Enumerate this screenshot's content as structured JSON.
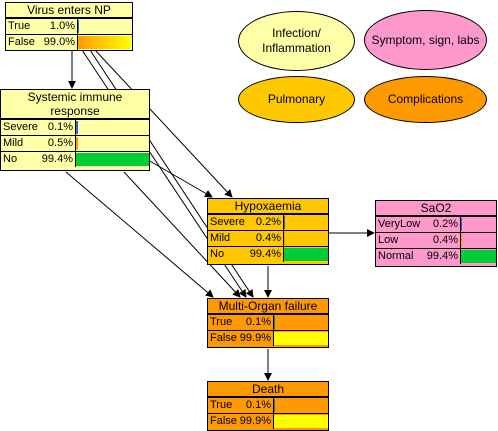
{
  "legend": {
    "infection": "Infection/\nInflammation",
    "symptom": "Symptom, sign, labs",
    "pulmonary": "Pulmonary",
    "complications": "Complications"
  },
  "colors": {
    "infection": "#ffffa8",
    "symptom": "#ff99cc",
    "pulmonary": "#ffc800",
    "complications": "#ff9900",
    "bar_blue": "#3366cc",
    "bar_green": "#00cc33",
    "bar_orange": "#ff9900",
    "bar_yellow": "#ffff00"
  },
  "nodes": {
    "virus": {
      "title": "Virus enters NP",
      "states": [
        {
          "label": "True",
          "pct": "1.0%",
          "p": 0.01
        },
        {
          "label": "False",
          "pct": "99.0%",
          "p": 0.99
        }
      ]
    },
    "immune": {
      "title": "Systemic immune response",
      "states": [
        {
          "label": "Severe",
          "pct": "0.1%",
          "p": 0.001
        },
        {
          "label": "Mild",
          "pct": "0.5%",
          "p": 0.005
        },
        {
          "label": "No",
          "pct": "99.4%",
          "p": 0.994
        }
      ]
    },
    "hypox": {
      "title": "Hypoxaemia",
      "states": [
        {
          "label": "Severe",
          "pct": "0.2%",
          "p": 0.002
        },
        {
          "label": "Mild",
          "pct": "0.4%",
          "p": 0.004
        },
        {
          "label": "No",
          "pct": "99.4%",
          "p": 0.994
        }
      ]
    },
    "sao2": {
      "title": "SaO2",
      "states": [
        {
          "label": "VeryLow",
          "pct": "0.2%",
          "p": 0.002
        },
        {
          "label": "Low",
          "pct": "0.4%",
          "p": 0.004
        },
        {
          "label": "Normal",
          "pct": "99.4%",
          "p": 0.994
        }
      ]
    },
    "mof": {
      "title": "Multi-Organ failure",
      "states": [
        {
          "label": "True",
          "pct": "0.1%",
          "p": 0.001
        },
        {
          "label": "False",
          "pct": "99.9%",
          "p": 0.999
        }
      ]
    },
    "death": {
      "title": "Death",
      "states": [
        {
          "label": "True",
          "pct": "0.1%",
          "p": 0.001
        },
        {
          "label": "False",
          "pct": "99.9%",
          "p": 0.999
        }
      ]
    }
  }
}
